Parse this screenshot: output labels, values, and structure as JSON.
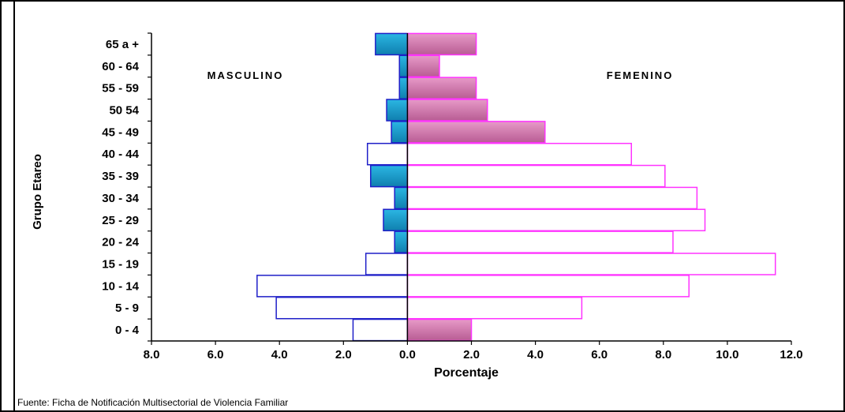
{
  "chart_data": {
    "type": "bar",
    "subtype": "population-pyramid",
    "title": "",
    "xlabel": "Porcentaje",
    "ylabel": "Grupo Etareo",
    "xlim": [
      -8,
      12
    ],
    "x_ticks": [
      "8.0",
      "6.0",
      "4.0",
      "2.0",
      "0.0",
      "2.0",
      "4.0",
      "6.0",
      "8.0",
      "10.0",
      "12.0"
    ],
    "categories": [
      "65 a +",
      "60 - 64",
      "55 - 59",
      "50 54",
      "45 - 49",
      "40 - 44",
      "35 - 39",
      "30 - 34",
      "25 - 29",
      "20 - 24",
      "15 - 19",
      "10 - 14",
      "5 - 9",
      "0 - 4"
    ],
    "series": [
      {
        "name": "MASCULINO",
        "values": [
          1.0,
          0.25,
          0.25,
          0.65,
          0.5,
          1.25,
          1.15,
          0.4,
          0.75,
          0.4,
          1.3,
          4.7,
          4.1,
          1.7
        ],
        "filled": [
          true,
          true,
          true,
          true,
          true,
          false,
          true,
          true,
          true,
          true,
          false,
          false,
          false,
          false
        ]
      },
      {
        "name": "FEMENINO",
        "values": [
          2.15,
          1.0,
          2.15,
          2.5,
          4.3,
          7.0,
          8.05,
          9.05,
          9.3,
          8.3,
          11.5,
          8.8,
          5.45,
          2.0
        ],
        "filled": [
          true,
          true,
          true,
          true,
          true,
          false,
          false,
          false,
          false,
          false,
          false,
          false,
          false,
          true
        ]
      }
    ],
    "colors": {
      "masculino_fill": "#1ea7d6",
      "masculino_stroke": "#1f1fc8",
      "femenino_fill": "#d67fb4",
      "femenino_stroke": "#ff33ff",
      "axis": "#000000"
    },
    "grid": false,
    "legend": "none",
    "annotations": {
      "left_label": "MASCULINO",
      "right_label": "FEMENINO"
    }
  },
  "source": "Fuente: Ficha de Notificación Multisectorial de Violencia Familiar"
}
